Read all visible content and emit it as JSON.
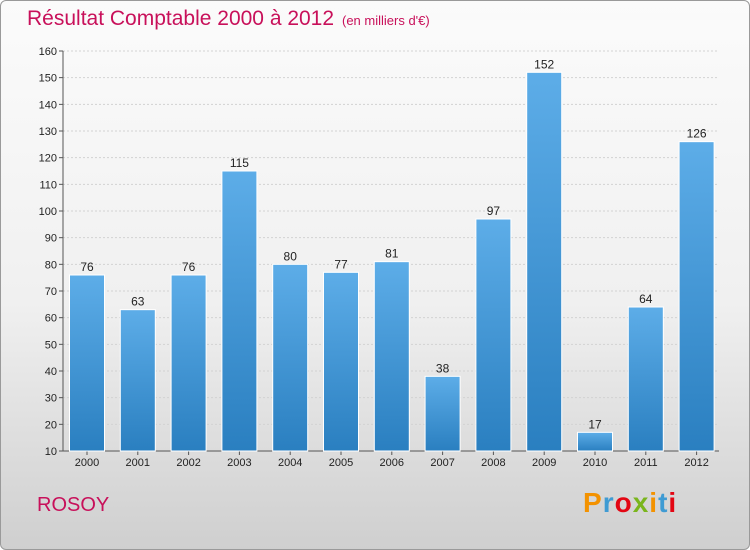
{
  "title": "Résultat Comptable 2000 à 2012",
  "subtitle": "(en milliers d'€)",
  "place": "ROSOY",
  "logo": {
    "letters": [
      "P",
      "r",
      "o",
      "x",
      "i",
      "t",
      "i"
    ],
    "colors": [
      "#f39200",
      "#3f9bd3",
      "#e30613",
      "#7ab51d",
      "#f39200",
      "#3f9bd3",
      "#e30613"
    ]
  },
  "colors": {
    "bar_light": "#5dade8",
    "bar_dark": "#2a7fc0",
    "title": "#c8105a"
  },
  "chart_data": {
    "type": "bar",
    "title": "Résultat Comptable 2000 à 2012",
    "subtitle": "(en milliers d'€)",
    "categories": [
      "2000",
      "2001",
      "2002",
      "2003",
      "2004",
      "2005",
      "2006",
      "2007",
      "2008",
      "2009",
      "2010",
      "2011",
      "2012"
    ],
    "values": [
      76,
      63,
      76,
      115,
      80,
      77,
      81,
      38,
      97,
      152,
      17,
      64,
      126
    ],
    "data_labels": [
      "76",
      "63",
      "76",
      "115",
      "80",
      "77",
      "81",
      "38",
      "97",
      "152",
      "17",
      "64",
      "126"
    ],
    "ylim": [
      10,
      160
    ],
    "yticks": [
      10,
      20,
      30,
      40,
      50,
      60,
      70,
      80,
      90,
      100,
      110,
      120,
      130,
      140,
      150,
      160
    ],
    "grid": true,
    "legend": "none"
  }
}
